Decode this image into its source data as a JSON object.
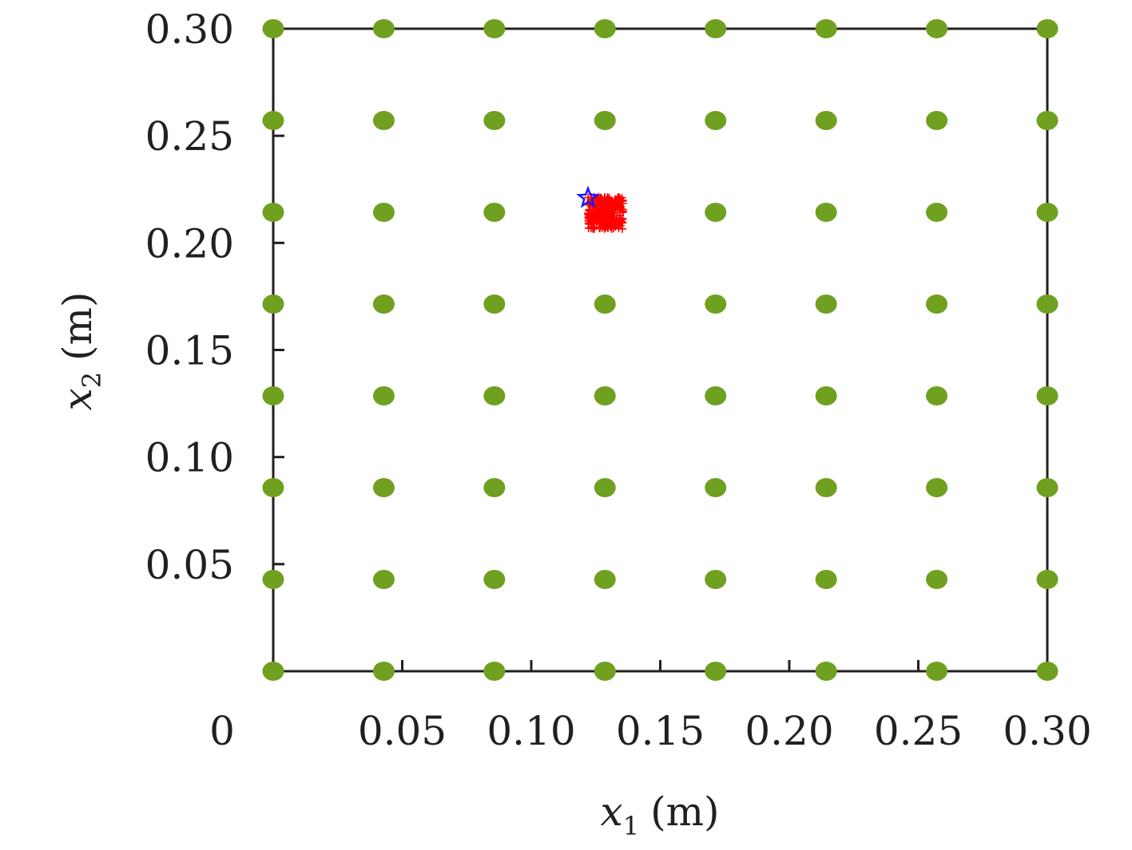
{
  "chart_data": {
    "type": "scatter",
    "xlabel": {
      "var": "x",
      "sub": "1",
      "unit": "(m)"
    },
    "ylabel": {
      "var": "x",
      "sub": "2",
      "unit": "(m)"
    },
    "xlim": [
      0,
      0.3
    ],
    "ylim": [
      0,
      0.3
    ],
    "x_ticks": [
      0.05,
      0.1,
      0.15,
      0.2,
      0.25,
      0.3
    ],
    "x_tick_labels": [
      "0.05",
      "0.10",
      "0.15",
      "0.20",
      "0.25",
      "0.30"
    ],
    "y_ticks": [
      0.05,
      0.1,
      0.15,
      0.2,
      0.25,
      0.3
    ],
    "y_tick_labels": [
      "0.05",
      "0.10",
      "0.15",
      "0.20",
      "0.25",
      "0.30"
    ],
    "origin_label": "0",
    "grid": false,
    "series": [
      {
        "marker": "dot",
        "color": "#6fa01f",
        "x": [
          0,
          0.04286,
          0.08571,
          0.12857,
          0.17143,
          0.21429,
          0.25714,
          0.3
        ],
        "y": [
          0,
          0.04286,
          0.08571,
          0.12857,
          0.17143,
          0.21429,
          0.25714,
          0.3
        ],
        "grid_points": true
      },
      {
        "marker": "star",
        "color": "#1a1aff",
        "points": [
          [
            0.122,
            0.221
          ]
        ]
      },
      {
        "marker": "plus-cluster",
        "color": "#ff0000",
        "center": [
          0.129,
          0.214
        ],
        "spread": [
          0.007,
          0.0075
        ]
      }
    ]
  }
}
